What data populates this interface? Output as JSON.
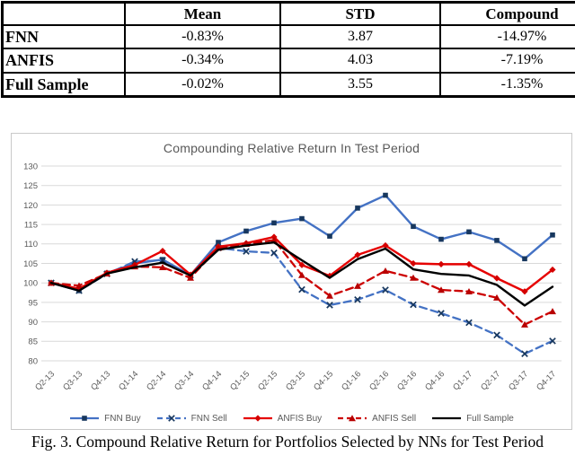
{
  "table": {
    "header": [
      "",
      "Mean",
      "STD",
      "Compound"
    ],
    "rows": [
      {
        "label": "FNN",
        "values": [
          "-0.83%",
          "3.87",
          "-14.97%"
        ]
      },
      {
        "label": "ANFIS",
        "values": [
          "-0.34%",
          "4.03",
          "-7.19%"
        ]
      },
      {
        "label": "Full Sample",
        "values": [
          "-0.02%",
          "3.55",
          "-1.35%"
        ]
      }
    ]
  },
  "chart_data": {
    "type": "line",
    "title": "Compounding Relative Return In Test Period",
    "categories": [
      "Q2-13",
      "Q3-13",
      "Q4-13",
      "Q1-14",
      "Q2-14",
      "Q3-14",
      "Q4-14",
      "Q1-15",
      "Q2-15",
      "Q3-15",
      "Q4-15",
      "Q1-16",
      "Q2-16",
      "Q3-16",
      "Q4-16",
      "Q1-17",
      "Q2-17",
      "Q3-17",
      "Q4-17"
    ],
    "ylim": [
      80,
      130
    ],
    "ytick_step": 5,
    "grid": "horizontal-only",
    "legend_position": "bottom",
    "axis_text_color": "#595959",
    "grid_color": "#d9d9d9",
    "series": [
      {
        "name": "FNN Buy",
        "color": "#4472c4",
        "marker_color": "#17375e",
        "dash": false,
        "marker": "square",
        "values": [
          100,
          98,
          102.5,
          105,
          106,
          102,
          110.4,
          113.3,
          115.4,
          116.5,
          112,
          119.2,
          122.5,
          114.5,
          111.2,
          113.1,
          110.9,
          106.2,
          112.3
        ]
      },
      {
        "name": "FNN Sell",
        "color": "#4472c4",
        "marker_color": "#17375e",
        "dash": true,
        "marker": "x",
        "values": [
          100,
          98,
          102.3,
          105.5,
          105.8,
          102,
          109,
          108.1,
          107.7,
          98.3,
          94.3,
          95.7,
          98.2,
          94.4,
          92.2,
          89.8,
          86.6,
          81.8,
          85.1
        ]
      },
      {
        "name": "ANFIS Buy",
        "color": "#e60000",
        "marker_color": "#d40000",
        "dash": false,
        "marker": "diamond",
        "values": [
          100,
          98.5,
          102.6,
          104.6,
          108.2,
          102.1,
          109.3,
          110.2,
          111.8,
          104.6,
          101.8,
          107.2,
          109.6,
          105,
          104.8,
          104.8,
          101.2,
          97.8,
          103.4
        ]
      },
      {
        "name": "ANFIS Sell",
        "color": "#cc0000",
        "marker_color": "#b80000",
        "dash": true,
        "marker": "triangle",
        "values": [
          100,
          99.3,
          102.4,
          104.2,
          104,
          101.3,
          109,
          110,
          111,
          102,
          96.7,
          99.2,
          103.1,
          101.3,
          98.2,
          97.8,
          96.2,
          89.3,
          92.7
        ]
      },
      {
        "name": "Full Sample",
        "color": "#000000",
        "marker_color": "#000000",
        "dash": false,
        "marker": "none",
        "values": [
          100,
          98,
          102.4,
          104,
          105.2,
          101.9,
          108.5,
          109.6,
          110.4,
          105.8,
          101.3,
          106.1,
          108.8,
          103.5,
          102.3,
          101.9,
          99.5,
          94.2,
          99
        ]
      }
    ]
  },
  "caption": "Fig. 3. Compound Relative Return for Portfolios Selected by NNs for Test Period"
}
